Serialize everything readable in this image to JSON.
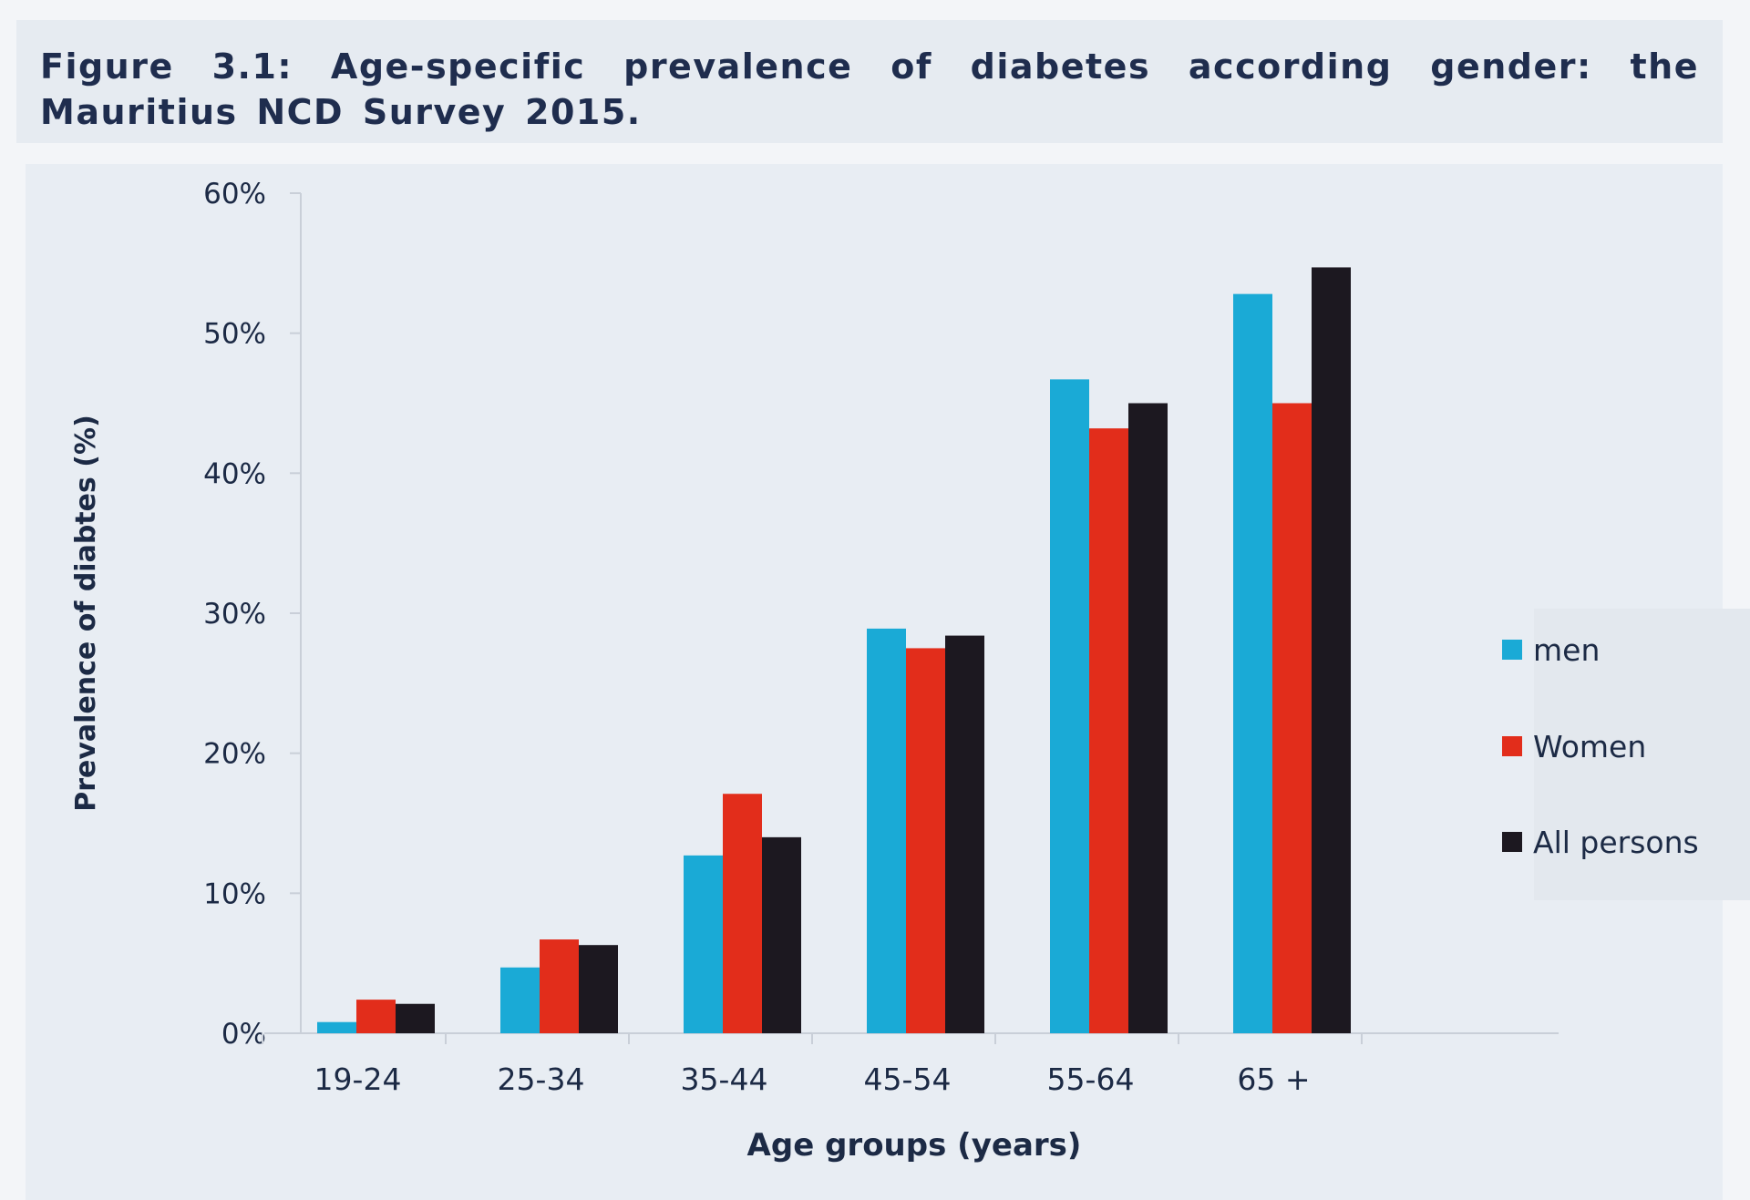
{
  "figure": {
    "title": "Figure 3.1: Age-specific prevalence of diabetes according gender: the Mauritius NCD Survey 2015."
  },
  "colors": {
    "men": "#1aaad6",
    "women": "#e22d1b",
    "all_persons": "#1c1820",
    "axis": "#c9cfd8",
    "text": "#1c2a45"
  },
  "chart_data": {
    "type": "bar",
    "title": "Figure 3.1: Age-specific prevalence of diabetes according gender: the Mauritius NCD Survey 2015.",
    "xlabel": "Age groups (years)",
    "ylabel": "Prevalence of diabtes (%)",
    "ylim": [
      0,
      60
    ],
    "yticks": [
      0,
      10,
      20,
      30,
      40,
      50,
      60
    ],
    "ytick_labels": [
      "0%",
      "10%",
      "20%",
      "30%",
      "40%",
      "50%",
      "60%"
    ],
    "categories": [
      "19-24",
      "25-34",
      "35-44",
      "45-54",
      "55-64",
      "65 +"
    ],
    "series": [
      {
        "name": "men",
        "color": "#1aaad6",
        "values": [
          0.8,
          4.7,
          12.7,
          28.9,
          46.7,
          52.8
        ]
      },
      {
        "name": "Women",
        "color": "#e22d1b",
        "values": [
          2.4,
          6.7,
          17.1,
          27.5,
          43.2,
          45.0
        ]
      },
      {
        "name": "All persons",
        "color": "#1c1820",
        "values": [
          2.1,
          6.3,
          14.0,
          28.4,
          45.0,
          54.7
        ]
      }
    ],
    "legend_position": "right",
    "grid": false
  }
}
